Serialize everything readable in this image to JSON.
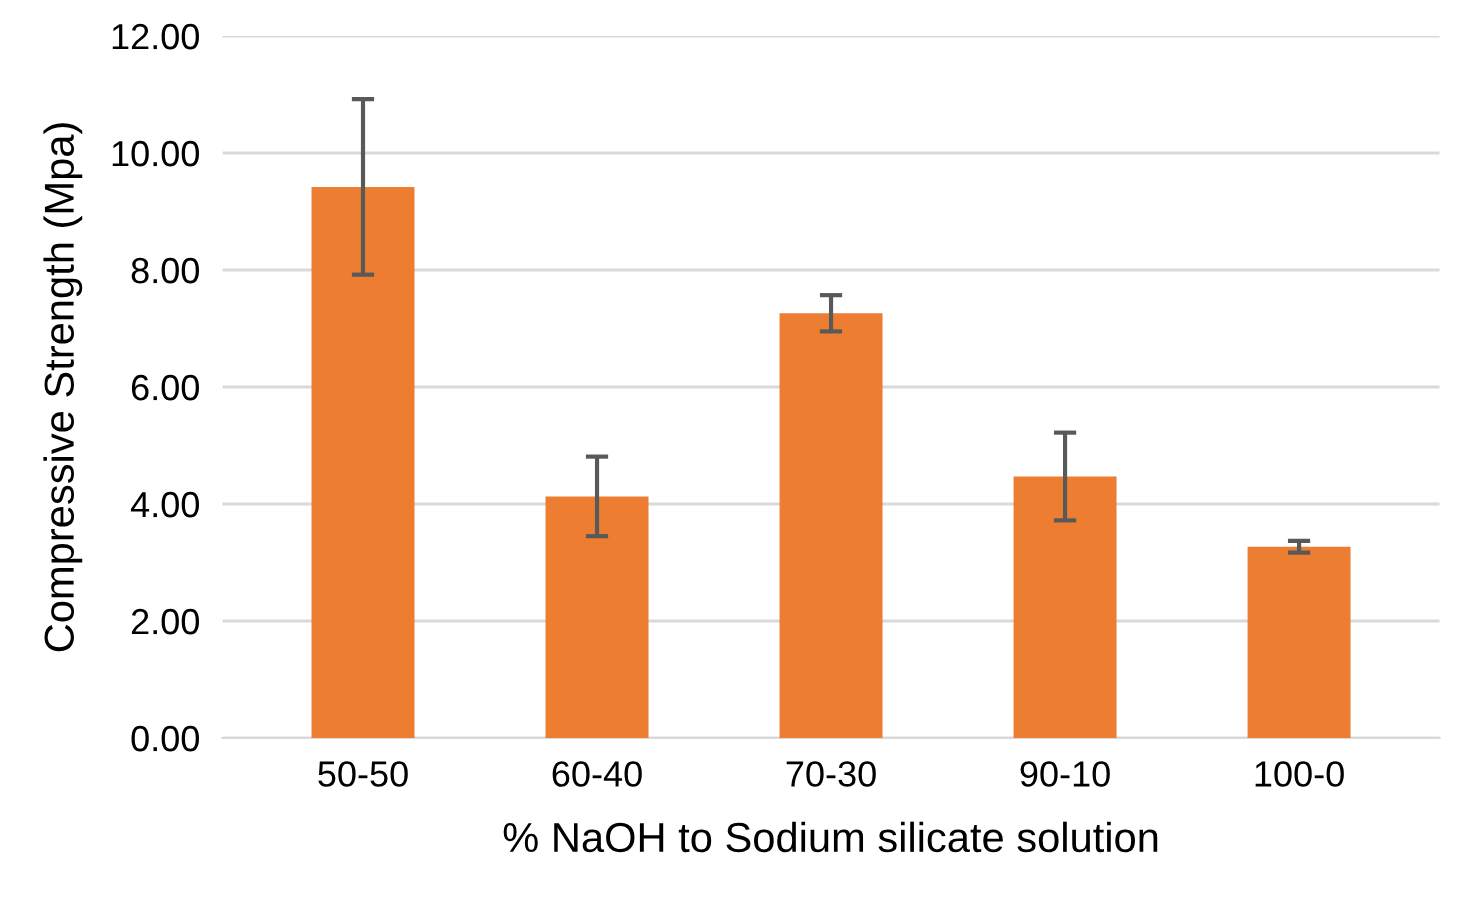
{
  "chart_data": {
    "type": "bar",
    "xlabel": "% NaOH to Sodium silicate solution",
    "ylabel": "Compressive Strength (Mpa)",
    "categories": [
      "50-50",
      "60-40",
      "70-30",
      "90-10",
      "100-0"
    ],
    "values": [
      9.42,
      4.13,
      7.26,
      4.47,
      3.27
    ],
    "errors": [
      1.5,
      0.68,
      0.31,
      0.75,
      0.1
    ],
    "color": "#ed7d31",
    "ylim": [
      0,
      12
    ],
    "yticks": [
      {
        "value": 0,
        "label": "0.00"
      },
      {
        "value": 2,
        "label": "2.00"
      },
      {
        "value": 4,
        "label": "4.00"
      },
      {
        "value": 6,
        "label": "6.00"
      },
      {
        "value": 8,
        "label": "8.00"
      },
      {
        "value": 10,
        "label": "10.00"
      },
      {
        "value": 12,
        "label": "12.00"
      }
    ],
    "grid": "y",
    "legend": false
  }
}
